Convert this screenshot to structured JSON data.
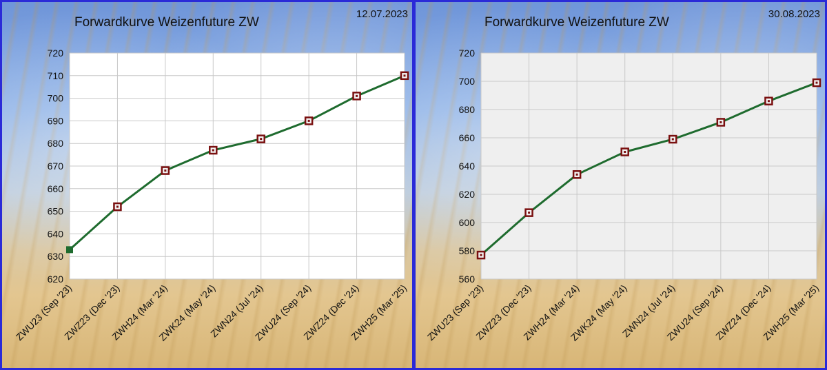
{
  "chart_data": [
    {
      "type": "line",
      "title": "Forwardkurve Weizenfuture ZW",
      "date": "12.07.2023",
      "categories": [
        "ZWU23 (Sep '23)",
        "ZWZ23 (Dec '23)",
        "ZWH24 (Mar '24)",
        "ZWK24 (May '24)",
        "ZWN24 (Jul '24)",
        "ZWU24 (Sep '24)",
        "ZWZ24 (Dec '24)",
        "ZWH25 (Mar '25)"
      ],
      "values": [
        633,
        652,
        668,
        677,
        682,
        690,
        701,
        710
      ],
      "ylim": [
        620,
        720
      ],
      "yticks": [
        620,
        630,
        640,
        650,
        660,
        670,
        680,
        690,
        700,
        710,
        720
      ],
      "plot_background": "#ffffff",
      "grid": true,
      "line_color": "#1e6b2e",
      "marker_color": "#7a1010",
      "first_marker_color": "#1e6b2e"
    },
    {
      "type": "line",
      "title": "Forwardkurve Weizenfuture ZW",
      "date": "30.08.2023",
      "categories": [
        "ZWU23 (Sep '23)",
        "ZWZ23 (Dec '23)",
        "ZWH24 (Mar '24)",
        "ZWK24 (May '24)",
        "ZWN24 (Jul '24)",
        "ZWU24 (Sep '24)",
        "ZWZ24 (Dec '24)",
        "ZWH25 (Mar '25)"
      ],
      "values": [
        577,
        607,
        634,
        650,
        659,
        671,
        686,
        699
      ],
      "ylim": [
        560,
        720
      ],
      "yticks": [
        560,
        580,
        600,
        620,
        640,
        660,
        680,
        700,
        720
      ],
      "plot_background": "#efefef",
      "grid": true,
      "line_color": "#1e6b2e",
      "marker_color": "#7a1010",
      "first_marker_color": "#7a1010"
    }
  ],
  "colors": {
    "frame": "#2a2ad8",
    "gridline": "#c8c8c8"
  }
}
